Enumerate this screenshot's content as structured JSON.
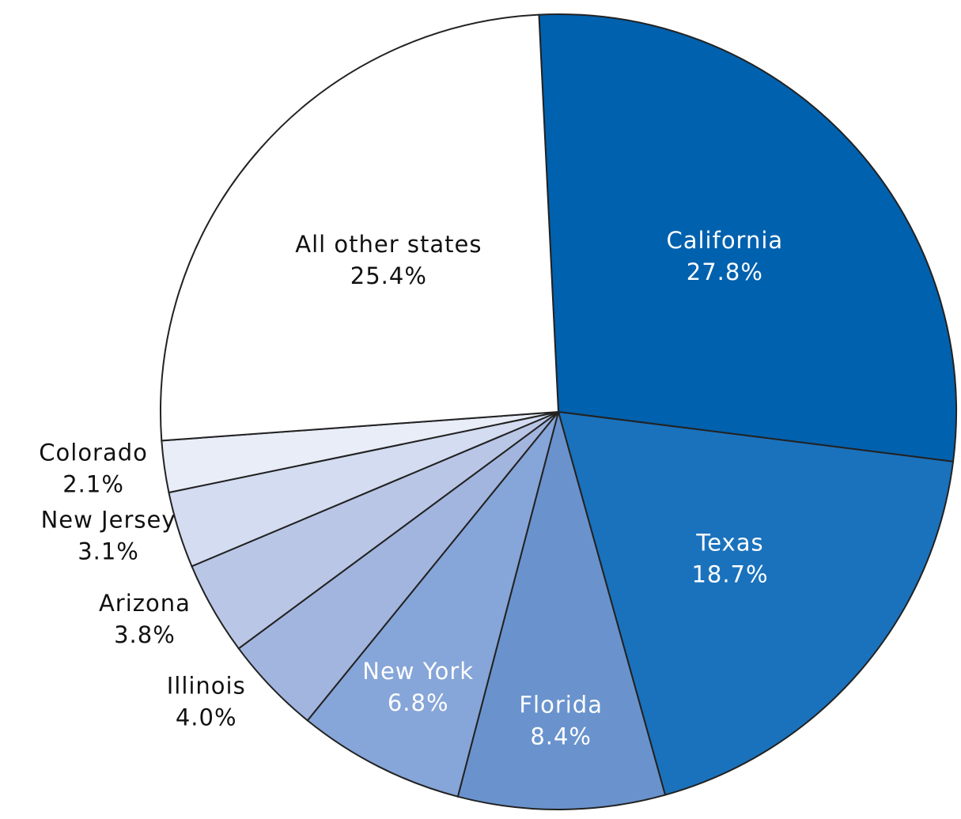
{
  "chart_data": {
    "type": "pie",
    "categories": [
      "California",
      "Texas",
      "Florida",
      "New York",
      "Illinois",
      "Arizona",
      "New Jersey",
      "Colorado",
      "All other states"
    ],
    "values": [
      27.8,
      18.7,
      8.4,
      6.8,
      4.0,
      3.8,
      3.1,
      2.1,
      25.4
    ],
    "value_labels": [
      "27.8%",
      "18.7%",
      "8.4%",
      "6.8%",
      "4.0%",
      "3.8%",
      "3.1%",
      "2.1%",
      "25.4%"
    ],
    "colors": [
      "#0061ae",
      "#1a72bd",
      "#6a93cd",
      "#86a5d8",
      "#a2b5de",
      "#b9c6e6",
      "#d3dcf0",
      "#e8edf8",
      "#ffffff"
    ]
  }
}
